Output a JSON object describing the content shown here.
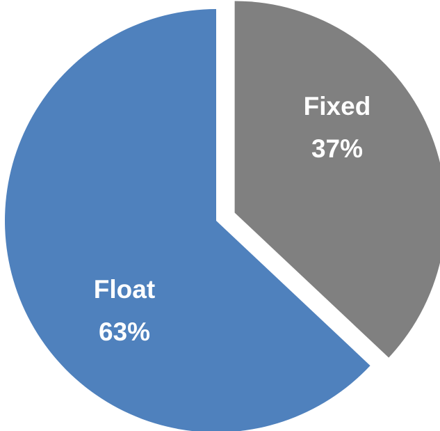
{
  "chart_data": {
    "type": "pie",
    "slices": [
      {
        "label": "Fixed",
        "value": 37,
        "value_label": "37%",
        "color": "#808080",
        "exploded": true
      },
      {
        "label": "Float",
        "value": 63,
        "value_label": "63%",
        "color": "#4f81bd",
        "exploded": false
      }
    ],
    "start_angle": "12 o'clock",
    "direction": "clockwise",
    "legend": "none"
  }
}
